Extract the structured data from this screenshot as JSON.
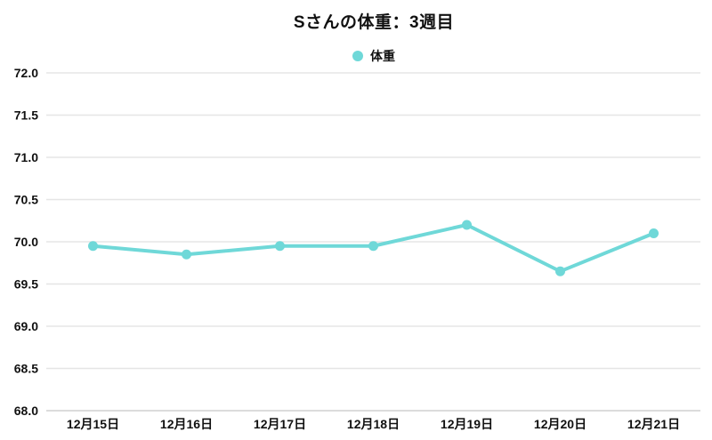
{
  "chart_data": {
    "type": "line",
    "title": "Sさんの体重：3週目",
    "categories": [
      "12月15日",
      "12月16日",
      "12月17日",
      "12月18日",
      "12月19日",
      "12月20日",
      "12月21日"
    ],
    "series": [
      {
        "name": "体重",
        "values": [
          69.95,
          69.85,
          69.95,
          69.95,
          70.2,
          69.65,
          70.1
        ],
        "color": "#6fd8d8"
      }
    ],
    "xlabel": "",
    "ylabel": "",
    "ylim": [
      68.0,
      72.0
    ],
    "ytick_step": 0.5,
    "ytick_labels": [
      "68.0",
      "68.5",
      "69.0",
      "69.5",
      "70.0",
      "70.5",
      "71.0",
      "71.5",
      "72.0"
    ],
    "grid": "horizontal-only",
    "gridline_color": "#e5e5e5",
    "axisline_color": "#d0d0d0",
    "text_color": "#111111",
    "legend_position": "top-center"
  }
}
